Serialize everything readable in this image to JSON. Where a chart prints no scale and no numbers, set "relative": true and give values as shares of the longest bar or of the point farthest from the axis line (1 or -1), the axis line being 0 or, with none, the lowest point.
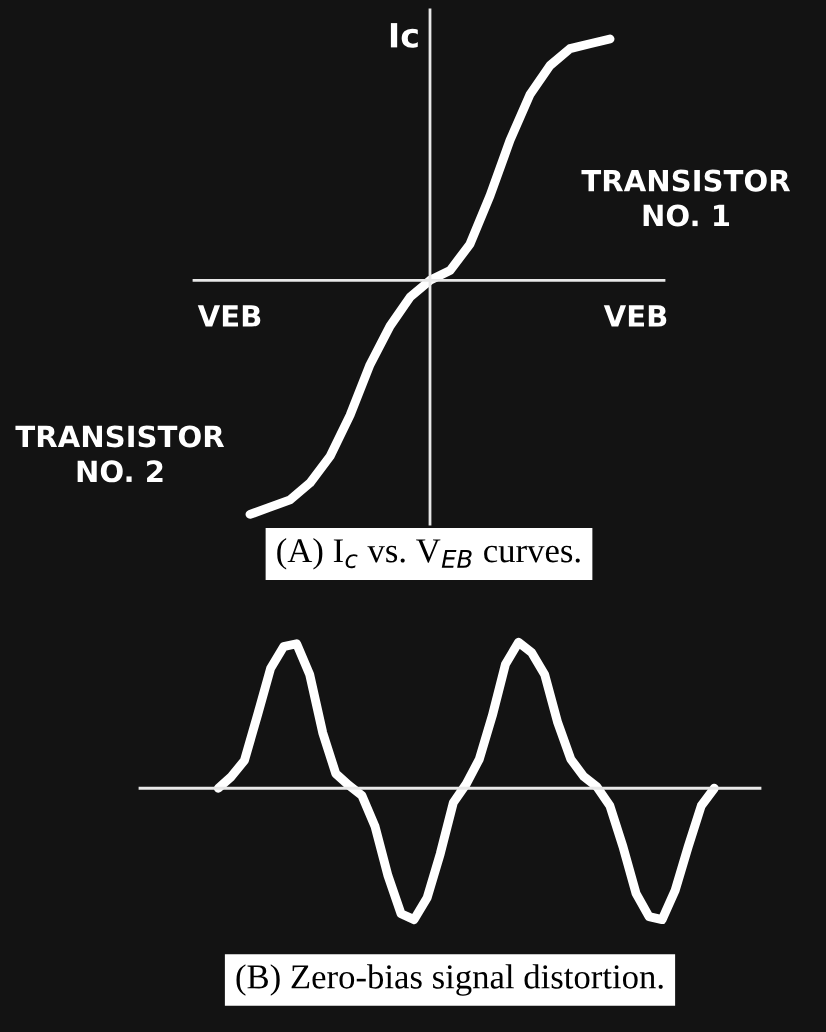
{
  "chart_data": [
    {
      "type": "line",
      "relative": true,
      "title": "(A) I$_{c}$ vs. V$_{EB}$ curves.",
      "ylabel": "Ic",
      "marker": "none",
      "line_style": "solid",
      "categories": [
        null,
        null,
        null,
        null,
        null,
        null,
        null,
        null,
        null,
        null,
        null,
        null,
        null,
        null,
        null,
        null,
        null,
        null,
        null
      ],
      "series": [
        {
          "color": "#ffffff",
          "values": [
            -0.97,
            -0.94,
            -0.91,
            -0.84,
            -0.73,
            -0.56,
            -0.35,
            -0.19,
            -0.07,
            0,
            0.04,
            0.15,
            0.35,
            0.58,
            0.77,
            0.89,
            0.96,
            0.98,
            1
          ]
        }
      ],
      "annotations": [
        "VEB",
        "VEB",
        "TRANSISTOR\nNO. 1",
        "TRANSISTOR\nNO. 2"
      ]
    },
    {
      "type": "line",
      "relative": true,
      "title": "(B) Zero-bias signal distortion.",
      "marker": "none",
      "line_style": "solid",
      "categories": [
        null,
        null,
        null,
        null,
        null,
        null,
        null,
        null,
        null,
        null,
        null,
        null,
        null,
        null,
        null,
        null,
        null,
        null,
        null,
        null,
        null,
        null,
        null,
        null,
        null,
        null,
        null,
        null,
        null,
        null,
        null,
        null,
        null,
        null,
        null,
        null,
        null,
        null,
        null
      ],
      "series": [
        {
          "color": "#ffffff",
          "values": [
            0,
            0.08,
            0.19,
            0.5,
            0.82,
            0.97,
            0.99,
            0.78,
            0.38,
            0.1,
            0.02,
            -0.05,
            -0.26,
            -0.6,
            -0.86,
            -0.9,
            -0.75,
            -0.45,
            -0.1,
            0.03,
            0.2,
            0.5,
            0.85,
            1.0,
            0.93,
            0.78,
            0.45,
            0.2,
            0.08,
            0.01,
            -0.12,
            -0.4,
            -0.72,
            -0.88,
            -0.9,
            -0.7,
            -0.4,
            -0.12,
            0
          ]
        }
      ]
    }
  ]
}
